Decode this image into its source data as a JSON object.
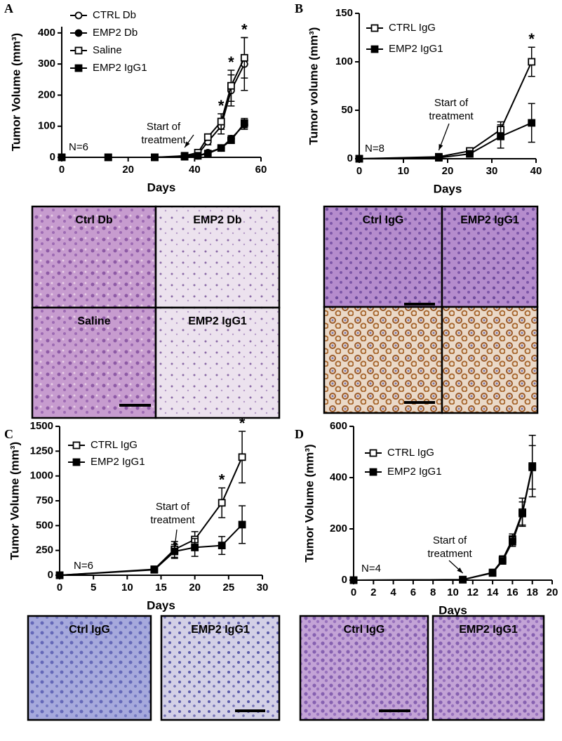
{
  "chart_data": [
    {
      "type": "line",
      "panel_label": "A",
      "y_label": "Tumor Volume (mm³)",
      "x_label": "Days",
      "x": [
        0,
        14,
        28,
        37,
        41,
        44,
        48,
        51,
        55
      ],
      "series": [
        {
          "name": "CTRL Db",
          "color": "#000000",
          "marker": "circle",
          "filled": false,
          "values": [
            0,
            0,
            0,
            3,
            10,
            50,
            100,
            215,
            300
          ],
          "errors": [
            0,
            0,
            0,
            2,
            5,
            10,
            25,
            50,
            85
          ]
        },
        {
          "name": "EMP2 Db",
          "color": "#000000",
          "marker": "circle",
          "filled": true,
          "values": [
            0,
            0,
            0,
            2,
            5,
            15,
            30,
            60,
            105
          ],
          "errors": [
            0,
            0,
            0,
            1,
            2,
            5,
            5,
            10,
            15
          ]
        },
        {
          "name": "Saline",
          "color": "#000000",
          "marker": "square",
          "filled": false,
          "values": [
            0,
            0,
            0,
            5,
            15,
            65,
            115,
            230,
            320
          ],
          "errors": [
            0,
            0,
            0,
            2,
            5,
            10,
            25,
            50,
            65
          ]
        },
        {
          "name": "EMP2 IgG1",
          "color": "#000000",
          "marker": "square",
          "filled": true,
          "values": [
            0,
            0,
            0,
            2,
            5,
            12,
            30,
            55,
            110
          ],
          "errors": [
            0,
            0,
            0,
            1,
            2,
            5,
            5,
            10,
            15
          ]
        }
      ],
      "xlim": [
        0,
        60
      ],
      "xticks": [
        0,
        20,
        40,
        60
      ],
      "ylim": [
        0,
        420
      ],
      "yticks": [
        0,
        100,
        200,
        300,
        400
      ],
      "legend": "upper left",
      "note": "N=6",
      "annotation": {
        "lines": [
          "Start of",
          "treatment"
        ],
        "x": 37
      },
      "significance": [
        {
          "x": 48,
          "label": "*"
        },
        {
          "x": 51,
          "label": "*"
        },
        {
          "x": 55,
          "label": "*"
        }
      ],
      "image_labels": [
        "Ctrl Db",
        "EMP2 Db",
        "Saline",
        "EMP2 IgG1"
      ]
    },
    {
      "type": "line",
      "panel_label": "B",
      "y_label": "Tumor volume (mm³)",
      "x_label": "Days",
      "x": [
        0,
        18,
        25,
        32,
        39
      ],
      "series": [
        {
          "name": "CTRL IgG",
          "color": "#000000",
          "marker": "square",
          "filled": false,
          "values": [
            0,
            2,
            8,
            30,
            100
          ],
          "errors": [
            0,
            1,
            3,
            8,
            15
          ]
        },
        {
          "name": "EMP2 IgG1",
          "color": "#000000",
          "marker": "square",
          "filled": true,
          "values": [
            0,
            1,
            5,
            23,
            37
          ],
          "errors": [
            0,
            1,
            2,
            12,
            20
          ]
        }
      ],
      "xlim": [
        0,
        40
      ],
      "xticks": [
        0,
        10,
        20,
        30,
        40
      ],
      "ylim": [
        0,
        150
      ],
      "yticks": [
        0,
        50,
        100,
        150
      ],
      "legend": "upper left",
      "note": "N=8",
      "annotation": {
        "lines": [
          "Start of",
          "treatment"
        ],
        "x": 18
      },
      "significance": [
        {
          "x": 39,
          "label": "*"
        }
      ],
      "image_labels": [
        "Ctrl IgG",
        "EMP2 IgG1"
      ]
    },
    {
      "type": "line",
      "panel_label": "C",
      "y_label": "Tumor Volume (mm³)",
      "x_label": "Days",
      "x": [
        0,
        14,
        17,
        20,
        24,
        27
      ],
      "series": [
        {
          "name": "CTRL IgG",
          "color": "#000000",
          "marker": "square",
          "filled": false,
          "values": [
            0,
            60,
            260,
            360,
            730,
            1190
          ],
          "errors": [
            0,
            15,
            80,
            80,
            150,
            260
          ]
        },
        {
          "name": "EMP2 IgG1",
          "color": "#000000",
          "marker": "square",
          "filled": true,
          "values": [
            0,
            55,
            240,
            280,
            300,
            510
          ],
          "errors": [
            0,
            15,
            70,
            90,
            90,
            190
          ]
        }
      ],
      "xlim": [
        0,
        30
      ],
      "xticks": [
        0,
        5,
        10,
        15,
        20,
        25,
        30
      ],
      "ylim": [
        0,
        1500
      ],
      "yticks": [
        0,
        250,
        500,
        750,
        1000,
        1250,
        1500
      ],
      "legend": "upper left",
      "note": "N=6",
      "annotation": {
        "lines": [
          "Start of",
          "treatment"
        ],
        "x": 17
      },
      "significance": [
        {
          "x": 24,
          "label": "*"
        },
        {
          "x": 27,
          "label": "*"
        }
      ],
      "image_labels": [
        "Ctrl IgG",
        "EMP2 IgG1"
      ]
    },
    {
      "type": "line",
      "panel_label": "D",
      "y_label": "Tumor Volume (mm³)",
      "x_label": "Days",
      "x": [
        0,
        11,
        14,
        15,
        16,
        17,
        18
      ],
      "series": [
        {
          "name": "CTRL IgG",
          "color": "#000000",
          "marker": "square",
          "filled": false,
          "values": [
            0,
            2,
            30,
            80,
            160,
            265,
            445
          ],
          "errors": [
            0,
            3,
            8,
            15,
            20,
            55,
            120
          ]
        },
        {
          "name": "EMP2 IgG1",
          "color": "#000000",
          "marker": "square",
          "filled": true,
          "values": [
            0,
            2,
            28,
            75,
            150,
            260,
            440
          ],
          "errors": [
            0,
            3,
            6,
            12,
            18,
            45,
            85
          ]
        }
      ],
      "xlim": [
        0,
        20
      ],
      "xticks": [
        0,
        2,
        4,
        6,
        8,
        10,
        12,
        14,
        16,
        18,
        20
      ],
      "ylim": [
        0,
        600
      ],
      "yticks": [
        0,
        200,
        400,
        600
      ],
      "legend": "upper left",
      "note": "N=4",
      "annotation": {
        "lines": [
          "Start of",
          "treatment"
        ],
        "x": 11
      },
      "significance": [],
      "image_labels": [
        "Ctrl IgG",
        "EMP2 IgG1"
      ]
    }
  ]
}
